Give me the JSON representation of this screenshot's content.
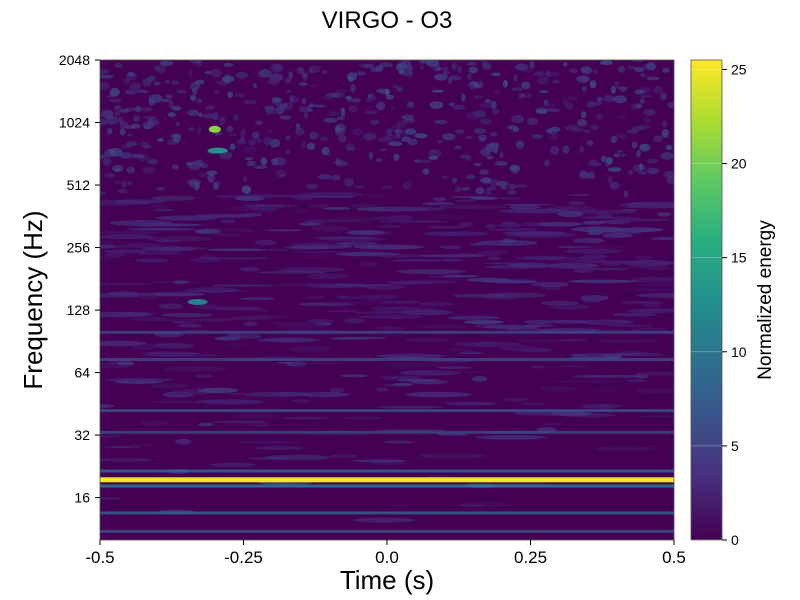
{
  "chart_data": {
    "type": "heatmap",
    "title": "VIRGO - O3",
    "xlabel": "Time (s)",
    "ylabel": "Frequency (Hz)",
    "xlim": [
      -0.5,
      0.5
    ],
    "ylim": [
      10,
      2048
    ],
    "yscale": "log2",
    "x_ticks": [
      -0.5,
      -0.25,
      0.0,
      0.25,
      0.5
    ],
    "x_tick_labels": [
      "-0.5",
      "-0.25",
      "0.0",
      "0.25",
      "0.5"
    ],
    "y_ticks": [
      16,
      32,
      64,
      128,
      256,
      512,
      1024,
      2048
    ],
    "y_tick_labels": [
      "16",
      "32",
      "64",
      "128",
      "256",
      "512",
      "1024",
      "2048"
    ],
    "colorbar": {
      "label": "Normalized energy",
      "range": [
        0,
        25.5
      ],
      "ticks": [
        0,
        5,
        10,
        15,
        20,
        25
      ],
      "tick_labels": [
        "0",
        "5",
        "10",
        "15",
        "20",
        "25"
      ],
      "colormap": "viridis"
    },
    "features": [
      {
        "kind": "horizontal-band",
        "frequency_hz": 19.5,
        "energy": 25
      },
      {
        "kind": "horizontal-band",
        "frequency_hz": 18.2,
        "energy": 13
      },
      {
        "kind": "horizontal-band",
        "frequency_hz": 21.5,
        "energy": 10
      },
      {
        "kind": "horizontal-band",
        "frequency_hz": 13.5,
        "energy": 9
      },
      {
        "kind": "horizontal-band",
        "frequency_hz": 11,
        "energy": 7
      },
      {
        "kind": "horizontal-band",
        "frequency_hz": 33,
        "energy": 6
      },
      {
        "kind": "horizontal-band",
        "frequency_hz": 42,
        "energy": 7
      },
      {
        "kind": "horizontal-band",
        "frequency_hz": 74,
        "energy": 6
      },
      {
        "kind": "horizontal-band",
        "frequency_hz": 100,
        "energy": 6
      },
      {
        "kind": "blip",
        "time_s": -0.3,
        "frequency_hz": 950,
        "energy": 21
      },
      {
        "kind": "blip",
        "time_s": -0.295,
        "frequency_hz": 750,
        "energy": 13
      },
      {
        "kind": "blip",
        "time_s": -0.33,
        "frequency_hz": 140,
        "energy": 11
      }
    ]
  }
}
